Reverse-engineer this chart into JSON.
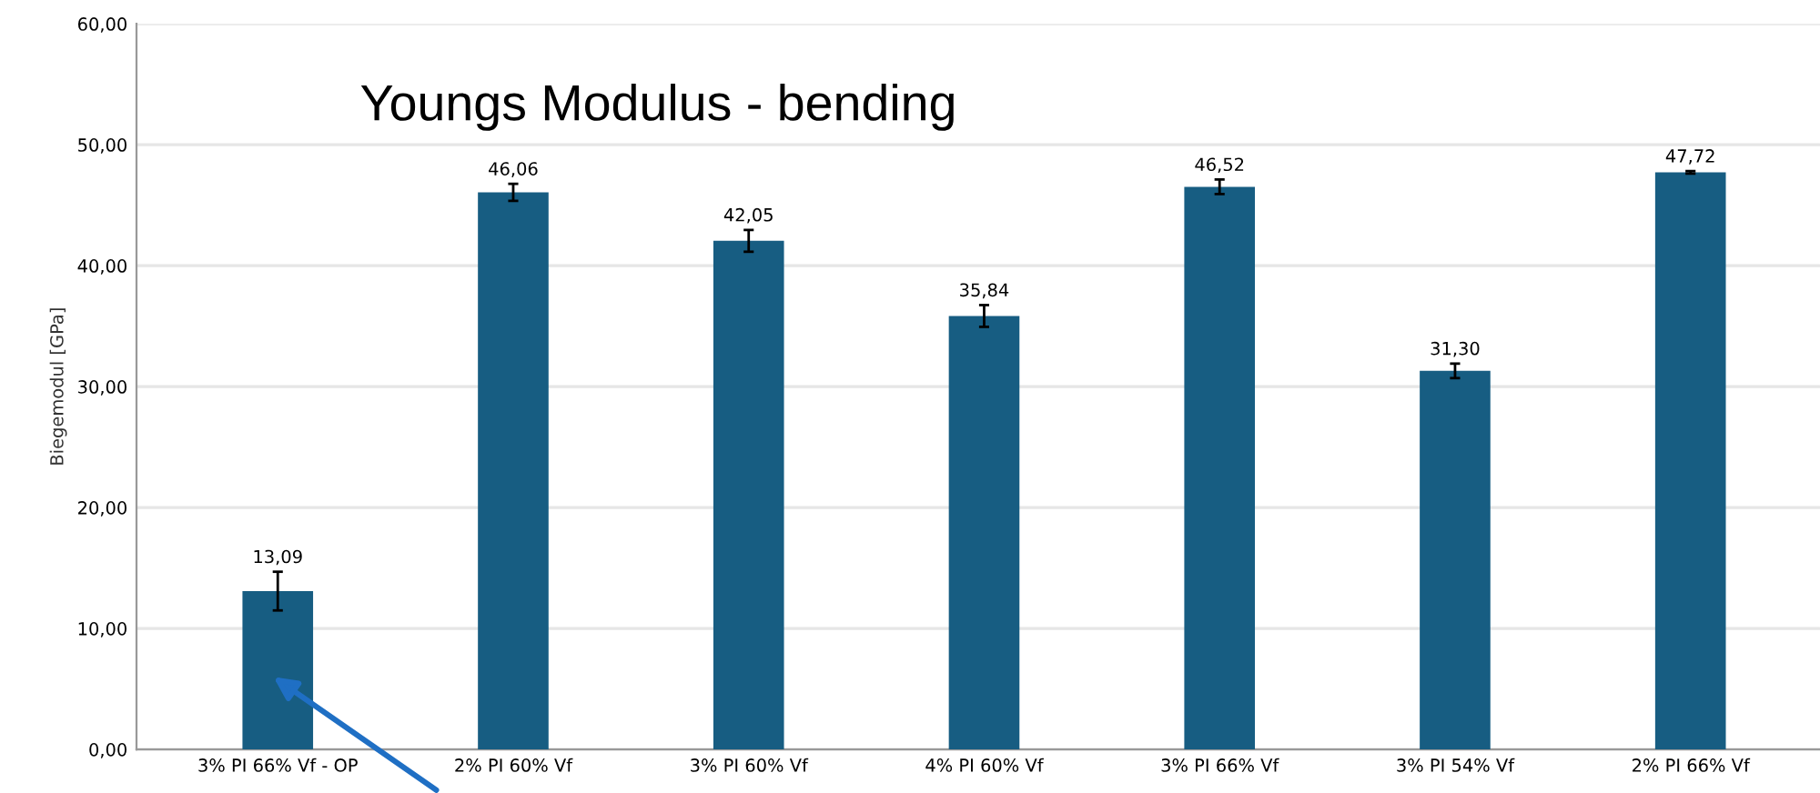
{
  "chart_data": {
    "type": "bar",
    "title": "Youngs Modulus - bending",
    "ylabel": "Biegemodul [GPa]",
    "categories": [
      "3% PI 66% Vf - OP",
      "2% PI 60% Vf",
      "3% PI 60% Vf",
      "4% PI 60% Vf",
      "3% PI 66% Vf",
      "3% PI 54% Vf",
      "2% PI 66% Vf"
    ],
    "values": [
      13.09,
      46.06,
      42.05,
      35.84,
      46.52,
      31.3,
      47.72
    ],
    "errors": [
      1.6,
      0.7,
      0.9,
      0.9,
      0.6,
      0.6,
      0.1
    ],
    "value_labels": [
      "13,09",
      "46,06",
      "42,05",
      "35,84",
      "46,52",
      "31,30",
      "47,72"
    ],
    "color": "#175d82",
    "ylim": [
      0,
      60
    ],
    "yticks": [
      {
        "value": 0,
        "label": "0,00"
      },
      {
        "value": 10,
        "label": "10,00"
      },
      {
        "value": 20,
        "label": "20,00"
      },
      {
        "value": 30,
        "label": "30,00"
      },
      {
        "value": 40,
        "label": "40,00"
      },
      {
        "value": 50,
        "label": "50,00"
      },
      {
        "value": 60,
        "label": "60,00"
      }
    ],
    "grid": "y"
  }
}
